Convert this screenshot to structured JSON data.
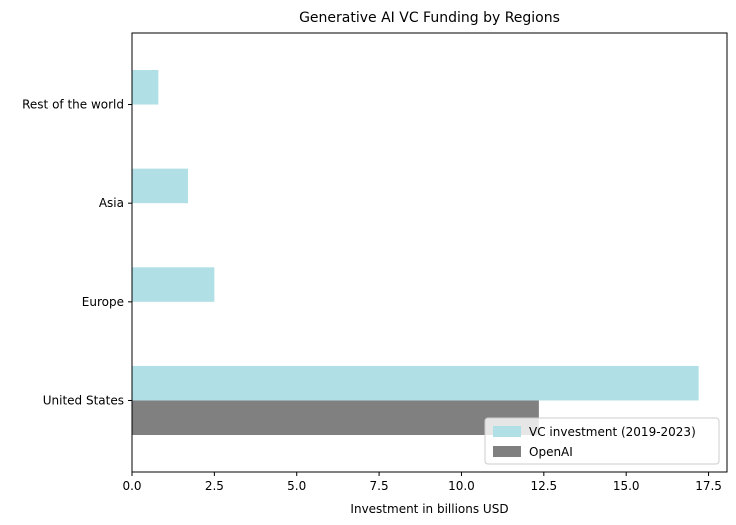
{
  "chart_data": {
    "type": "bar",
    "orientation": "horizontal",
    "title": "Generative AI VC Funding by Regions",
    "xlabel": "Investment in billions USD",
    "ylabel": "",
    "categories": [
      "United States",
      "Europe",
      "Asia",
      "Rest of the world"
    ],
    "series": [
      {
        "name": "VC investment (2019-2023)",
        "color": "#b0e0e6",
        "values": [
          17.2,
          2.5,
          1.7,
          0.8
        ]
      },
      {
        "name": "OpenAI",
        "color": "#808080",
        "values": [
          12.35,
          null,
          null,
          null
        ]
      }
    ],
    "xlim": [
      0,
      18.06
    ],
    "xticks": [
      "0.0",
      "2.5",
      "5.0",
      "7.5",
      "10.0",
      "12.5",
      "15.0",
      "17.5"
    ],
    "grid": false,
    "legend": "lower right"
  }
}
